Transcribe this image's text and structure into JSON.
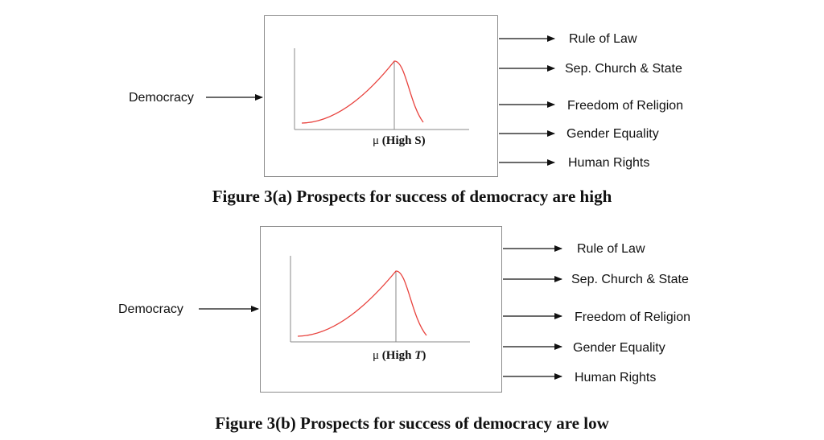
{
  "figures": [
    {
      "input_label": "Democracy",
      "mu_symbol": "μ",
      "mu_text_prefix": "(High ",
      "mu_variable": "S",
      "mu_text_suffix": ")",
      "outputs": [
        "Rule of Law",
        "Sep. Church & State",
        "Freedom of Religion",
        "Gender Equality",
        "Human Rights"
      ],
      "caption": "Figure 3(a) Prospects for success of democracy are high"
    },
    {
      "input_label": "Democracy",
      "mu_symbol": "μ",
      "mu_text_prefix": "(High ",
      "mu_variable": "T",
      "mu_text_suffix": ")",
      "outputs": [
        "Rule of Law",
        "Sep. Church & State",
        "Freedom of Religion",
        "Gender Equality",
        "Human Rights"
      ],
      "caption": "Figure 3(b) Prospects for success of democracy are low"
    }
  ],
  "colors": {
    "curve": "#e8413c",
    "axis": "#888888",
    "arrow": "#111111"
  }
}
